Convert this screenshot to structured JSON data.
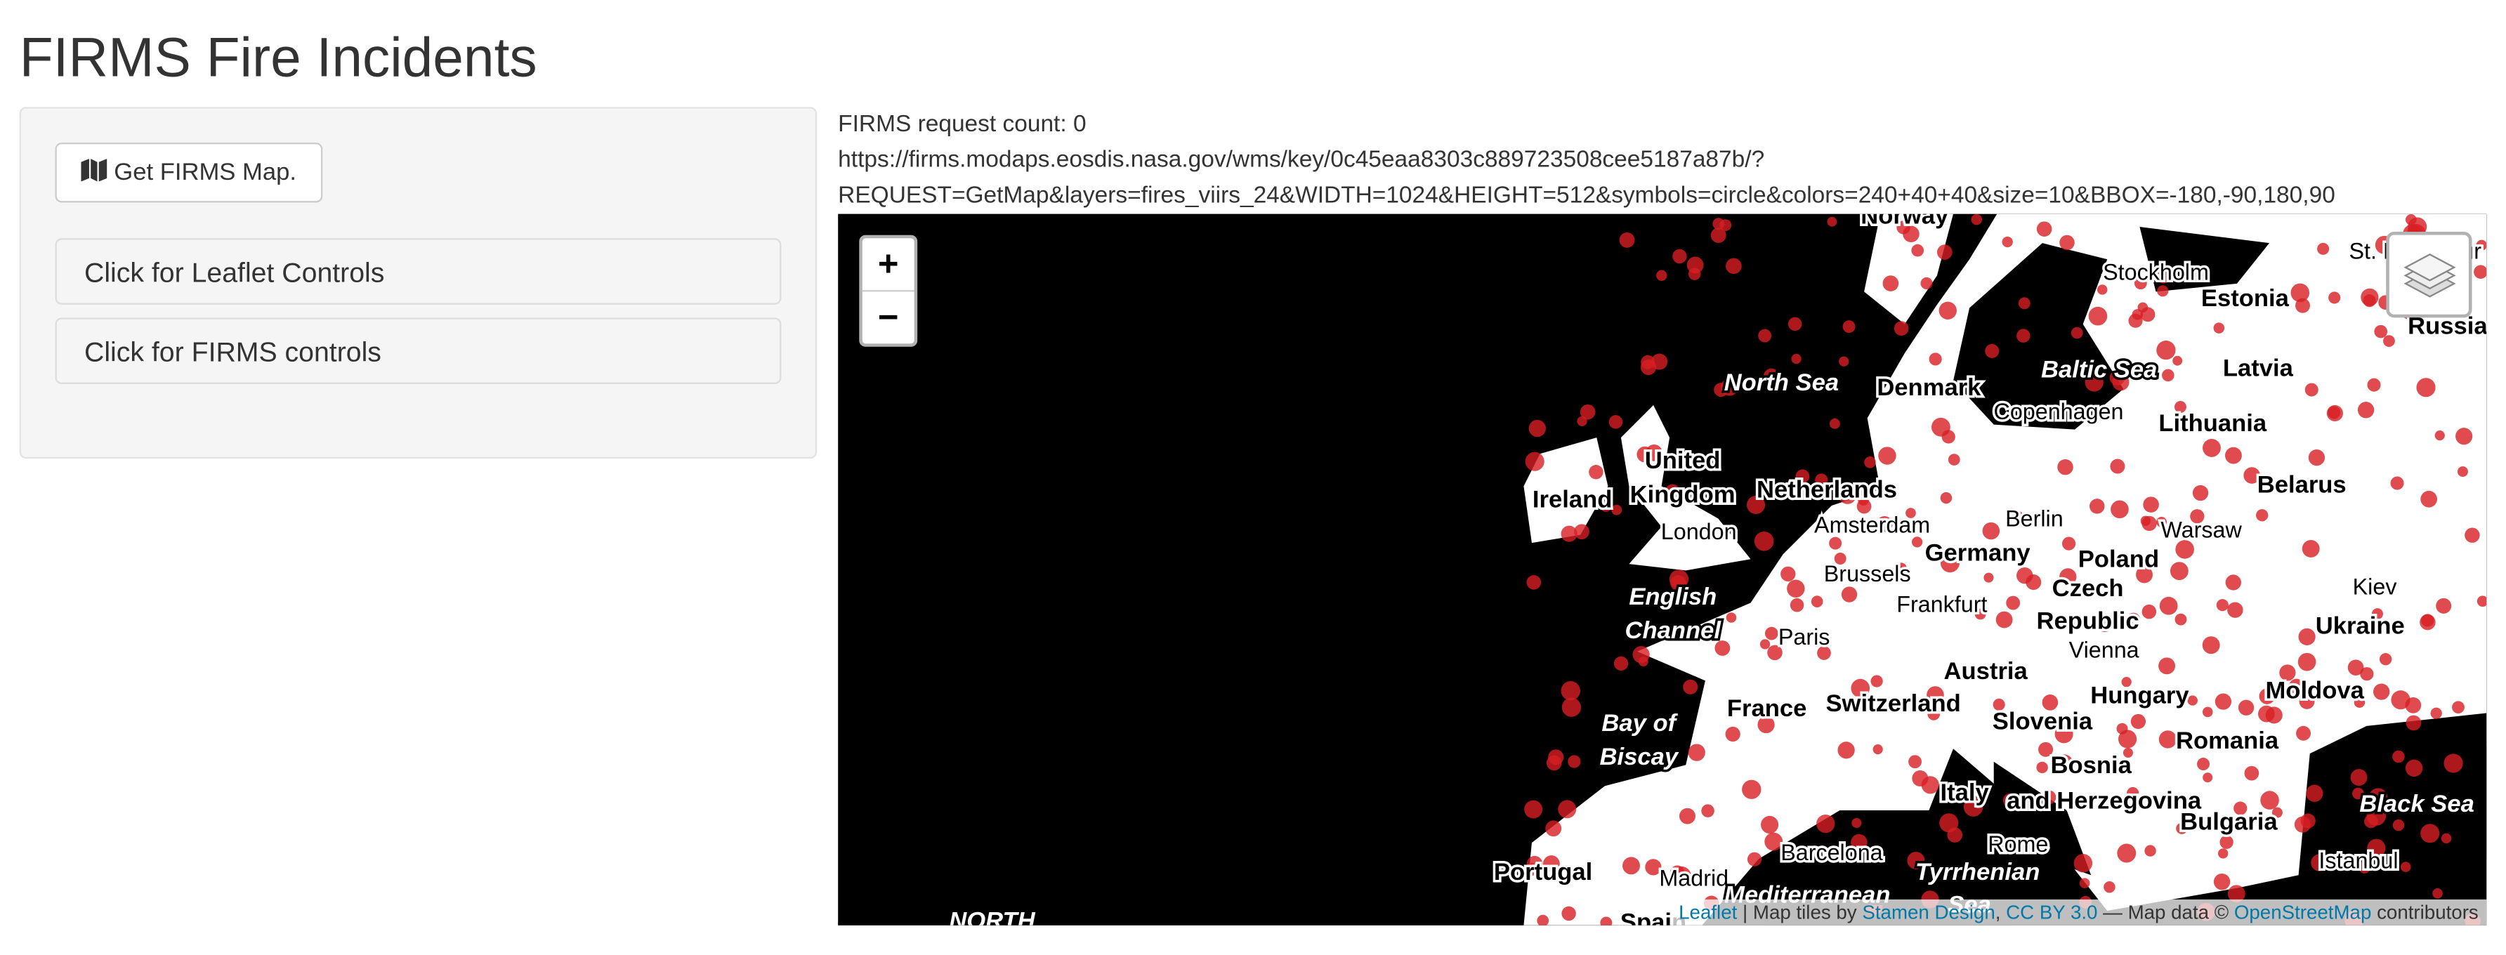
{
  "header": {
    "title": "FIRMS Fire Incidents"
  },
  "sidebar": {
    "button": "Get FIRMS Map.",
    "panels": [
      "Click for Leaflet Controls",
      "Click for FIRMS controls"
    ]
  },
  "info": {
    "request_count": "FIRMS request count: 0",
    "url_line1": "https://firms.modaps.eosdis.nasa.gov/wms/key/0c45eaa8303c889723508cee5187a87b/?",
    "url_line2": "REQUEST=GetMap&layers=fires_viirs_24&WIDTH=1024&HEIGHT=512&symbols=circle&colors=240+40+40&size=10&BBOX=-180,-90,180,90"
  },
  "map": {
    "zoom_in": "+",
    "zoom_out": "−",
    "labels": [
      "Norway",
      "Stockholm",
      "Estonia",
      "St. Petersbur",
      "Russia",
      "Latvia",
      "North Sea",
      "Denmark",
      "Baltic Sea",
      "Copenhagen",
      "Lithuania",
      "United",
      "Kingdom",
      "Ireland",
      "Netherlands",
      "Belarus",
      "Berlin",
      "London",
      "Amsterdam",
      "Warsaw",
      "Germany",
      "Poland",
      "Brussels",
      "Kiev",
      "Czech",
      "Frankfurt",
      "Republic",
      "Ukraine",
      "English",
      "Channel",
      "Paris",
      "Vienna",
      "Austria",
      "France",
      "Switzerland",
      "Hungary",
      "Moldova",
      "Bay of",
      "Biscay",
      "Slovenia",
      "Romania",
      "Bosnia",
      "Italy",
      "and Herzegovina",
      "Black Sea",
      "Bulgaria",
      "Rome",
      "Barcelona",
      "Istanbul",
      "Portugal",
      "Madrid",
      "Tyrrhenian",
      "Mediterranean",
      "Sea",
      "NORTH",
      "Spain"
    ],
    "attribution": {
      "leaflet": "Leaflet",
      "sep1": " | Map tiles by ",
      "stamen": "Stamen Design",
      "comma": ", ",
      "license": "CC BY 3.0",
      "sep2": " — Map data © ",
      "osm": "OpenStreetMap",
      "tail": " contributors"
    }
  }
}
